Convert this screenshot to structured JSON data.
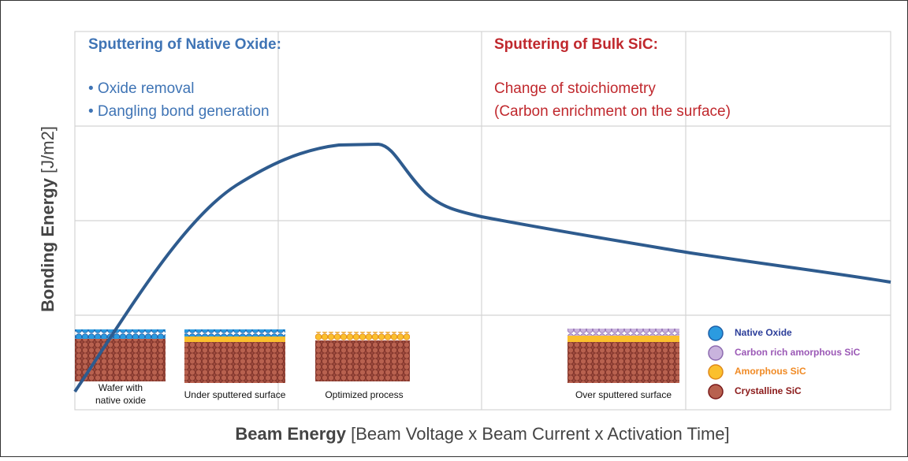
{
  "axes": {
    "y_label": {
      "bold": "Bonding Energy",
      "unit": " [J/m2]"
    },
    "x_label": {
      "bold": "Beam Energy",
      "unit": " [Beam Voltage x Beam Current x Activation Time]"
    }
  },
  "regions": [
    {
      "title": "Sputtering of Native Oxide:",
      "lines": [
        "• Oxide removal",
        "• Dangling bond generation"
      ]
    },
    {
      "title": "Sputtering of Bulk SiC:",
      "lines": [
        "Change of stoichiometry",
        "(Carbon enrichment on the surface)"
      ]
    }
  ],
  "wafers": [
    {
      "label": [
        "Wafer with",
        "native oxide"
      ]
    },
    {
      "label": [
        "Under sputtered surface"
      ]
    },
    {
      "label": [
        "Optimized process"
      ]
    },
    {
      "label": [
        "Over sputtered surface"
      ]
    }
  ],
  "legend": [
    {
      "label": "Native Oxide"
    },
    {
      "label": "Carbon rich amorphous SiC"
    },
    {
      "label": "Amorphous SiC"
    },
    {
      "label": "Crystalline SiC"
    }
  ]
}
